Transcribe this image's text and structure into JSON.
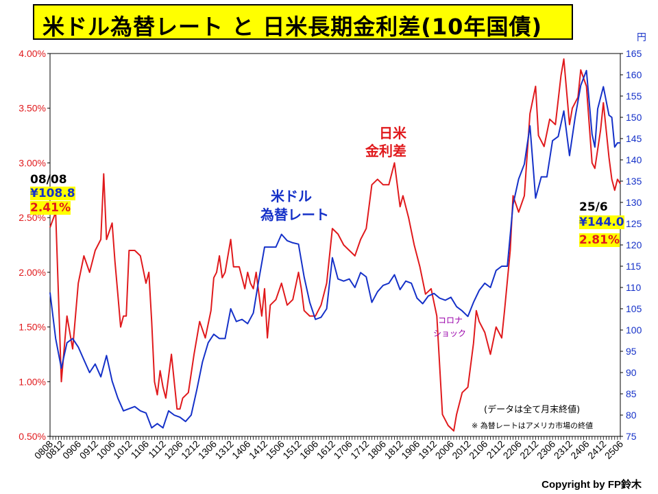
{
  "title": "米ドル為替レート と 日米長期金利差(10年国債)",
  "copyright": "Copyright by FP鈴木",
  "colors": {
    "spread": "#e0191c",
    "fx": "#1430c8",
    "corona": "#9900aa",
    "highlight": "#ffff00"
  },
  "labels": {
    "fx_series": [
      "米ドル",
      "為替レート"
    ],
    "spread_series": [
      "日米",
      "金利差"
    ],
    "corona": [
      "コロナ",
      "ショック"
    ],
    "start_date": "08/08",
    "start_fx": "¥108.8",
    "start_spread": "2.41%",
    "end_date": "25/6",
    "end_fx": "¥144.0",
    "end_spread": "2.81%",
    "note1": "(データは全て月末終値)",
    "note2": "※ 為替レートはアメリカ市場の終値",
    "right_unit": "円"
  },
  "chart_data": {
    "type": "line",
    "left_axis": {
      "min": 0.5,
      "max": 4.0,
      "ticks": [
        "0.50%",
        "1.00%",
        "1.50%",
        "2.00%",
        "2.50%",
        "3.00%",
        "3.50%",
        "4.00%"
      ]
    },
    "right_axis": {
      "min": 75,
      "max": 165,
      "ticks": [
        "75",
        "80",
        "85",
        "90",
        "95",
        "100",
        "105",
        "110",
        "115",
        "120",
        "125",
        "130",
        "135",
        "140",
        "145",
        "150",
        "155",
        "160",
        "165"
      ]
    },
    "x_tick_labels": [
      "0808",
      "0812",
      "0906",
      "0912",
      "1006",
      "1012",
      "1106",
      "1112",
      "1206",
      "1212",
      "1306",
      "1312",
      "1406",
      "1412",
      "1506",
      "1512",
      "1606",
      "1612",
      "1706",
      "1712",
      "1806",
      "1812",
      "1906",
      "1912",
      "2006",
      "2012",
      "2106",
      "2112",
      "2206",
      "2212",
      "2306",
      "2312",
      "2406",
      "2412",
      "2506"
    ],
    "series": [
      {
        "name": "日米金利差",
        "axis": "left",
        "points": [
          [
            "2008-08",
            2.41
          ],
          [
            "2008-10",
            2.55
          ],
          [
            "2008-12",
            1.0
          ],
          [
            "2009-02",
            1.6
          ],
          [
            "2009-04",
            1.3
          ],
          [
            "2009-06",
            1.9
          ],
          [
            "2009-08",
            2.15
          ],
          [
            "2009-10",
            2.0
          ],
          [
            "2009-12",
            2.2
          ],
          [
            "2010-02",
            2.3
          ],
          [
            "2010-03",
            2.9
          ],
          [
            "2010-04",
            2.3
          ],
          [
            "2010-06",
            2.45
          ],
          [
            "2010-07",
            2.1
          ],
          [
            "2010-08",
            1.8
          ],
          [
            "2010-09",
            1.5
          ],
          [
            "2010-10",
            1.6
          ],
          [
            "2010-11",
            1.6
          ],
          [
            "2010-12",
            2.2
          ],
          [
            "2011-02",
            2.2
          ],
          [
            "2011-04",
            2.15
          ],
          [
            "2011-06",
            1.9
          ],
          [
            "2011-07",
            2.0
          ],
          [
            "2011-08",
            1.55
          ],
          [
            "2011-09",
            1.0
          ],
          [
            "2011-10",
            0.88
          ],
          [
            "2011-11",
            1.1
          ],
          [
            "2011-12",
            0.95
          ],
          [
            "2012-01",
            0.85
          ],
          [
            "2012-03",
            1.25
          ],
          [
            "2012-04",
            1.0
          ],
          [
            "2012-05",
            0.75
          ],
          [
            "2012-06",
            0.75
          ],
          [
            "2012-07",
            0.85
          ],
          [
            "2012-09",
            0.9
          ],
          [
            "2012-11",
            1.25
          ],
          [
            "2013-01",
            1.55
          ],
          [
            "2013-03",
            1.4
          ],
          [
            "2013-05",
            1.65
          ],
          [
            "2013-06",
            1.95
          ],
          [
            "2013-07",
            2.0
          ],
          [
            "2013-08",
            2.15
          ],
          [
            "2013-09",
            1.95
          ],
          [
            "2013-10",
            2.0
          ],
          [
            "2013-12",
            2.3
          ],
          [
            "2014-01",
            2.05
          ],
          [
            "2014-03",
            2.05
          ],
          [
            "2014-05",
            1.85
          ],
          [
            "2014-06",
            2.0
          ],
          [
            "2014-07",
            1.9
          ],
          [
            "2014-08",
            1.85
          ],
          [
            "2014-09",
            2.0
          ],
          [
            "2014-10",
            1.8
          ],
          [
            "2014-11",
            1.6
          ],
          [
            "2014-12",
            1.85
          ],
          [
            "2015-01",
            1.4
          ],
          [
            "2015-02",
            1.7
          ],
          [
            "2015-04",
            1.75
          ],
          [
            "2015-06",
            1.9
          ],
          [
            "2015-08",
            1.7
          ],
          [
            "2015-10",
            1.75
          ],
          [
            "2015-12",
            2.0
          ],
          [
            "2016-01",
            1.85
          ],
          [
            "2016-02",
            1.65
          ],
          [
            "2016-04",
            1.6
          ],
          [
            "2016-06",
            1.6
          ],
          [
            "2016-08",
            1.7
          ],
          [
            "2016-10",
            1.9
          ],
          [
            "2016-12",
            2.4
          ],
          [
            "2017-02",
            2.35
          ],
          [
            "2017-04",
            2.25
          ],
          [
            "2017-06",
            2.2
          ],
          [
            "2017-08",
            2.15
          ],
          [
            "2017-10",
            2.3
          ],
          [
            "2017-12",
            2.4
          ],
          [
            "2018-02",
            2.8
          ],
          [
            "2018-04",
            2.85
          ],
          [
            "2018-06",
            2.8
          ],
          [
            "2018-08",
            2.8
          ],
          [
            "2018-10",
            3.0
          ],
          [
            "2018-12",
            2.6
          ],
          [
            "2019-01",
            2.7
          ],
          [
            "2019-03",
            2.5
          ],
          [
            "2019-05",
            2.25
          ],
          [
            "2019-07",
            2.05
          ],
          [
            "2019-09",
            1.8
          ],
          [
            "2019-11",
            1.85
          ],
          [
            "2020-01",
            1.6
          ],
          [
            "2020-03",
            0.7
          ],
          [
            "2020-05",
            0.6
          ],
          [
            "2020-07",
            0.55
          ],
          [
            "2020-08",
            0.7
          ],
          [
            "2020-10",
            0.9
          ],
          [
            "2020-12",
            0.95
          ],
          [
            "2021-02",
            1.35
          ],
          [
            "2021-03",
            1.65
          ],
          [
            "2021-04",
            1.55
          ],
          [
            "2021-06",
            1.45
          ],
          [
            "2021-08",
            1.25
          ],
          [
            "2021-10",
            1.5
          ],
          [
            "2021-12",
            1.4
          ],
          [
            "2022-01",
            1.65
          ],
          [
            "2022-03",
            2.2
          ],
          [
            "2022-04",
            2.7
          ],
          [
            "2022-06",
            2.55
          ],
          [
            "2022-08",
            2.7
          ],
          [
            "2022-10",
            3.45
          ],
          [
            "2022-12",
            3.7
          ],
          [
            "2023-01",
            3.25
          ],
          [
            "2023-03",
            3.15
          ],
          [
            "2023-05",
            3.4
          ],
          [
            "2023-07",
            3.35
          ],
          [
            "2023-09",
            3.8
          ],
          [
            "2023-10",
            3.95
          ],
          [
            "2023-12",
            3.35
          ],
          [
            "2024-01",
            3.5
          ],
          [
            "2024-03",
            3.6
          ],
          [
            "2024-04",
            3.85
          ],
          [
            "2024-06",
            3.7
          ],
          [
            "2024-08",
            3.0
          ],
          [
            "2024-09",
            2.95
          ],
          [
            "2024-11",
            3.3
          ],
          [
            "2024-12",
            3.55
          ],
          [
            "2025-02",
            3.05
          ],
          [
            "2025-03",
            2.85
          ],
          [
            "2025-04",
            2.75
          ],
          [
            "2025-05",
            2.85
          ],
          [
            "2025-06",
            2.81
          ]
        ]
      },
      {
        "name": "米ドル為替レート",
        "axis": "right",
        "points": [
          [
            "2008-08",
            108.8
          ],
          [
            "2008-10",
            98
          ],
          [
            "2008-12",
            91
          ],
          [
            "2009-02",
            97
          ],
          [
            "2009-04",
            98
          ],
          [
            "2009-06",
            96
          ],
          [
            "2009-08",
            93
          ],
          [
            "2009-10",
            90
          ],
          [
            "2009-12",
            92
          ],
          [
            "2010-02",
            89
          ],
          [
            "2010-04",
            94
          ],
          [
            "2010-06",
            88
          ],
          [
            "2010-08",
            84
          ],
          [
            "2010-10",
            81
          ],
          [
            "2010-12",
            81.5
          ],
          [
            "2011-02",
            82
          ],
          [
            "2011-04",
            81
          ],
          [
            "2011-06",
            80.5
          ],
          [
            "2011-08",
            77
          ],
          [
            "2011-10",
            78
          ],
          [
            "2011-12",
            77
          ],
          [
            "2012-02",
            81
          ],
          [
            "2012-04",
            80
          ],
          [
            "2012-06",
            79.5
          ],
          [
            "2012-08",
            78.5
          ],
          [
            "2012-10",
            80
          ],
          [
            "2012-12",
            86
          ],
          [
            "2013-02",
            92.5
          ],
          [
            "2013-04",
            97
          ],
          [
            "2013-06",
            99
          ],
          [
            "2013-08",
            98
          ],
          [
            "2013-10",
            98
          ],
          [
            "2013-12",
            105
          ],
          [
            "2014-02",
            102
          ],
          [
            "2014-04",
            102.5
          ],
          [
            "2014-06",
            101.5
          ],
          [
            "2014-08",
            104
          ],
          [
            "2014-10",
            112
          ],
          [
            "2014-12",
            119.5
          ],
          [
            "2015-02",
            119.5
          ],
          [
            "2015-04",
            119.5
          ],
          [
            "2015-06",
            122.5
          ],
          [
            "2015-08",
            121
          ],
          [
            "2015-10",
            120.5
          ],
          [
            "2015-12",
            120.2
          ],
          [
            "2016-02",
            112.5
          ],
          [
            "2016-04",
            106.5
          ],
          [
            "2016-06",
            102.5
          ],
          [
            "2016-08",
            103
          ],
          [
            "2016-10",
            105
          ],
          [
            "2016-12",
            117
          ],
          [
            "2017-02",
            112
          ],
          [
            "2017-04",
            111.5
          ],
          [
            "2017-06",
            112
          ],
          [
            "2017-08",
            110
          ],
          [
            "2017-10",
            113.5
          ],
          [
            "2017-12",
            112.5
          ],
          [
            "2018-02",
            106.5
          ],
          [
            "2018-04",
            109
          ],
          [
            "2018-06",
            110.5
          ],
          [
            "2018-08",
            111
          ],
          [
            "2018-10",
            113
          ],
          [
            "2018-12",
            109.5
          ],
          [
            "2019-02",
            111.5
          ],
          [
            "2019-04",
            111
          ],
          [
            "2019-06",
            107.5
          ],
          [
            "2019-08",
            106.2
          ],
          [
            "2019-10",
            108
          ],
          [
            "2019-12",
            108.6
          ],
          [
            "2020-02",
            107.5
          ],
          [
            "2020-04",
            107
          ],
          [
            "2020-06",
            107.7
          ],
          [
            "2020-08",
            105.5
          ],
          [
            "2020-10",
            104.5
          ],
          [
            "2020-12",
            103.2
          ],
          [
            "2021-02",
            106.5
          ],
          [
            "2021-04",
            109.3
          ],
          [
            "2021-06",
            111
          ],
          [
            "2021-08",
            110
          ],
          [
            "2021-10",
            114
          ],
          [
            "2021-12",
            115
          ],
          [
            "2022-02",
            115
          ],
          [
            "2022-04",
            129.5
          ],
          [
            "2022-06",
            135.5
          ],
          [
            "2022-08",
            139
          ],
          [
            "2022-10",
            148
          ],
          [
            "2022-12",
            131
          ],
          [
            "2023-02",
            136
          ],
          [
            "2023-04",
            136
          ],
          [
            "2023-06",
            144.5
          ],
          [
            "2023-08",
            145.5
          ],
          [
            "2023-10",
            151.5
          ],
          [
            "2023-12",
            141
          ],
          [
            "2024-02",
            150
          ],
          [
            "2024-04",
            157.5
          ],
          [
            "2024-06",
            161
          ],
          [
            "2024-08",
            146
          ],
          [
            "2024-09",
            143
          ],
          [
            "2024-10",
            152
          ],
          [
            "2024-12",
            157.2
          ],
          [
            "2025-02",
            150.5
          ],
          [
            "2025-03",
            150
          ],
          [
            "2025-04",
            143
          ],
          [
            "2025-05",
            144
          ],
          [
            "2025-06",
            144.0
          ]
        ]
      }
    ]
  }
}
